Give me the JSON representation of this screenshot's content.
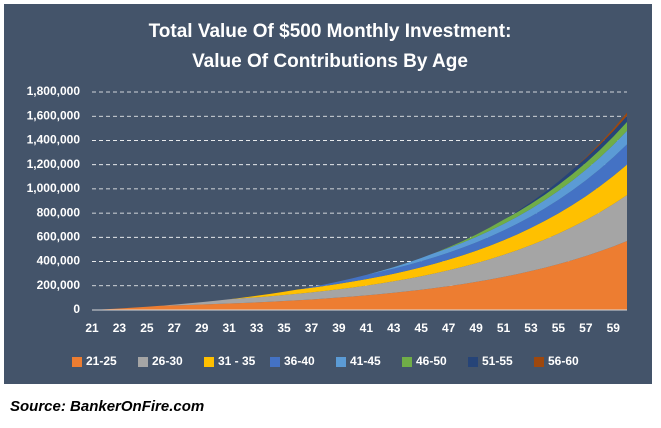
{
  "chart_data": {
    "type": "stacked-area",
    "title": "Total Value Of $500 Monthly Investment:",
    "subtitle": "Value Of Contributions By Age",
    "x": [
      21,
      22,
      23,
      24,
      25,
      26,
      27,
      28,
      29,
      30,
      31,
      32,
      33,
      34,
      35,
      36,
      37,
      38,
      39,
      40,
      41,
      42,
      43,
      44,
      45,
      46,
      47,
      48,
      49,
      50,
      51,
      52,
      53,
      54,
      55,
      56,
      57,
      58,
      59,
      60
    ],
    "xlim": [
      21,
      60
    ],
    "xticks": [
      21,
      23,
      25,
      27,
      29,
      31,
      33,
      35,
      37,
      39,
      41,
      43,
      45,
      47,
      49,
      51,
      53,
      55,
      57,
      59
    ],
    "ylim": [
      0,
      1800000
    ],
    "yticks": [
      0,
      {
        "value": 200000,
        "label": "200,000"
      },
      {
        "value": 400000,
        "label": "400,000"
      },
      {
        "value": 600000,
        "label": "600,000"
      },
      {
        "value": 800000,
        "label": "800,000"
      },
      {
        "value": 1000000,
        "label": "1,000,000"
      },
      {
        "value": 1200000,
        "label": "1,200,000"
      },
      {
        "value": 1400000,
        "label": "1,400,000"
      },
      {
        "value": 1600000,
        "label": "1,600,000"
      },
      {
        "value": 1800000,
        "label": "1,800,000"
      }
    ],
    "grid": true,
    "series": [
      {
        "name": "21-25",
        "color": "#ed7d31",
        "values": [
          0,
          6000,
          12500,
          19600,
          27200,
          35600,
          38600,
          41800,
          45400,
          49300,
          53500,
          58000,
          62900,
          68300,
          74100,
          80400,
          87200,
          94600,
          102700,
          111400,
          120900,
          131100,
          142300,
          154400,
          167500,
          181700,
          197200,
          213900,
          232100,
          251900,
          273300,
          296500,
          321700,
          349000,
          378700,
          410900,
          445800,
          483700,
          524800,
          569500
        ]
      },
      {
        "name": "26-30",
        "color": "#a5a5a5",
        "values": [
          0,
          0,
          0,
          0,
          0,
          0,
          6000,
          12500,
          19600,
          27200,
          35600,
          38600,
          41800,
          45400,
          49300,
          53500,
          58000,
          62900,
          68300,
          74100,
          80400,
          87200,
          94600,
          102700,
          111400,
          120900,
          131100,
          142300,
          154400,
          167500,
          181700,
          197200,
          213900,
          232100,
          251900,
          273300,
          296500,
          321700,
          349000,
          378700
        ]
      },
      {
        "name": "31 - 35",
        "color": "#ffc000",
        "values": [
          0,
          0,
          0,
          0,
          0,
          0,
          0,
          0,
          0,
          0,
          0,
          6000,
          12500,
          19600,
          27200,
          35600,
          38600,
          41800,
          45400,
          49300,
          53500,
          58000,
          62900,
          68300,
          74100,
          80400,
          87200,
          94600,
          102700,
          111400,
          120900,
          131100,
          142300,
          154400,
          167500,
          181700,
          197200,
          213900,
          232100,
          251900
        ]
      },
      {
        "name": "36-40",
        "color": "#4472c4",
        "values": [
          0,
          0,
          0,
          0,
          0,
          0,
          0,
          0,
          0,
          0,
          0,
          0,
          0,
          0,
          0,
          0,
          6000,
          12500,
          19600,
          27200,
          35600,
          38600,
          41800,
          45400,
          49300,
          53500,
          58000,
          62900,
          68300,
          74100,
          80400,
          87200,
          94600,
          102700,
          111400,
          120900,
          131100,
          142300,
          154400,
          167500
        ]
      },
      {
        "name": "41-45",
        "color": "#5b9bd5",
        "values": [
          0,
          0,
          0,
          0,
          0,
          0,
          0,
          0,
          0,
          0,
          0,
          0,
          0,
          0,
          0,
          0,
          0,
          0,
          0,
          0,
          0,
          6000,
          12500,
          19600,
          27200,
          35600,
          38600,
          41800,
          45400,
          49300,
          53500,
          58000,
          62900,
          68300,
          74100,
          80400,
          87200,
          94600,
          102700,
          111400
        ]
      },
      {
        "name": "46-50",
        "color": "#70ad47",
        "values": [
          0,
          0,
          0,
          0,
          0,
          0,
          0,
          0,
          0,
          0,
          0,
          0,
          0,
          0,
          0,
          0,
          0,
          0,
          0,
          0,
          0,
          0,
          0,
          0,
          0,
          0,
          6000,
          12500,
          19600,
          27200,
          35600,
          38600,
          41800,
          45400,
          49300,
          53500,
          58000,
          62900,
          68300,
          74100
        ]
      },
      {
        "name": "51-55",
        "color": "#264478",
        "values": [
          0,
          0,
          0,
          0,
          0,
          0,
          0,
          0,
          0,
          0,
          0,
          0,
          0,
          0,
          0,
          0,
          0,
          0,
          0,
          0,
          0,
          0,
          0,
          0,
          0,
          0,
          0,
          0,
          0,
          0,
          0,
          6000,
          12500,
          19600,
          27200,
          35600,
          38600,
          41800,
          45400,
          49300
        ]
      },
      {
        "name": "56-60",
        "color": "#9e480e",
        "values": [
          0,
          0,
          0,
          0,
          0,
          0,
          0,
          0,
          0,
          0,
          0,
          0,
          0,
          0,
          0,
          0,
          0,
          0,
          0,
          0,
          0,
          0,
          0,
          0,
          0,
          0,
          0,
          0,
          0,
          0,
          0,
          0,
          0,
          0,
          0,
          0,
          6000,
          12500,
          19600,
          27200
        ]
      }
    ]
  },
  "source": "Source: BankerOnFire.com"
}
